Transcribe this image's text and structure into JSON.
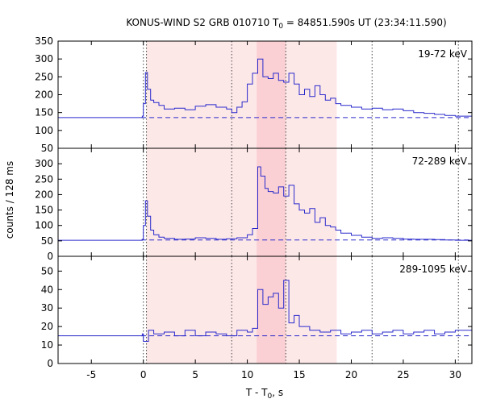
{
  "chart_data": {
    "type": "line",
    "title_main": "KONUS-WIND S2 GRB 010710 T",
    "title_sub": "0",
    "title_tail": " = 84851.590s UT (23:34:11.590)",
    "xlabel_main": "T - T",
    "xlabel_sub": "0",
    "xlabel_tail": ", s",
    "ylabel": "counts / 128 ms",
    "xlim": [
      -8.2,
      31.6
    ],
    "x_ticks": [
      -5,
      0,
      5,
      10,
      15,
      20,
      25,
      30
    ],
    "x_tick_labels": [
      "-5",
      "0",
      "5",
      "10",
      "15",
      "20",
      "25",
      "30"
    ],
    "grid": false,
    "colors": {
      "curve": "#2a2acc",
      "background_line": "#2a2acc",
      "shade_light": "#fde8e8",
      "shade_dark": "#fad0d4",
      "marker_line": "#444444"
    },
    "shaded_intervals": [
      {
        "start": 0.3,
        "end": 18.6,
        "tone": "light"
      },
      {
        "start": 10.9,
        "end": 13.7,
        "tone": "dark"
      }
    ],
    "vertical_markers": [
      {
        "x": 0.0,
        "style": "dotted"
      },
      {
        "x": 0.3,
        "style": "dotted"
      },
      {
        "x": 8.5,
        "style": "dotted"
      },
      {
        "x": 13.7,
        "style": "dotted"
      },
      {
        "x": 22.0,
        "style": "dotted"
      },
      {
        "x": 30.3,
        "style": "dotted"
      }
    ],
    "panels": [
      {
        "label": "19-72 keV",
        "ylim": [
          50,
          350
        ],
        "y_ticks": [
          50,
          100,
          150,
          200,
          250,
          300,
          350
        ],
        "y_tick_labels": [
          "50",
          "100",
          "150",
          "200",
          "250",
          "300",
          "350"
        ],
        "background_level": 136,
        "series": {
          "x": [
            -8.2,
            -0.4,
            -0.1,
            0.0,
            0.2,
            0.4,
            0.7,
            1.0,
            1.5,
            2.0,
            3.0,
            4.0,
            5.0,
            6.0,
            7.0,
            8.0,
            8.5,
            9.0,
            9.5,
            10.0,
            10.5,
            11.0,
            11.5,
            12.0,
            12.5,
            13.0,
            13.5,
            14.0,
            14.5,
            15.0,
            15.5,
            16.0,
            16.5,
            17.0,
            17.5,
            18.0,
            18.5,
            19.0,
            20.0,
            21.0,
            22.0,
            23.0,
            24.0,
            25.0,
            26.0,
            27.0,
            28.0,
            29.0,
            30.0,
            31.6
          ],
          "y": [
            136,
            136,
            140,
            175,
            262,
            215,
            185,
            178,
            170,
            160,
            162,
            158,
            168,
            172,
            165,
            160,
            150,
            165,
            180,
            230,
            260,
            300,
            250,
            245,
            260,
            240,
            235,
            260,
            230,
            200,
            215,
            195,
            225,
            200,
            185,
            190,
            175,
            170,
            165,
            160,
            162,
            158,
            160,
            155,
            150,
            148,
            145,
            142,
            140,
            140
          ]
        }
      },
      {
        "label": "72-289 keV",
        "ylim": [
          0,
          350
        ],
        "y_ticks": [
          0,
          50,
          100,
          150,
          200,
          250,
          300
        ],
        "y_tick_labels": [
          "0",
          "50",
          "100",
          "150",
          "200",
          "250",
          "300"
        ],
        "background_level": 53,
        "series": {
          "x": [
            -8.2,
            -0.5,
            -0.1,
            0.0,
            0.2,
            0.4,
            0.7,
            1.0,
            1.5,
            2.0,
            3.0,
            4.0,
            5.0,
            6.0,
            7.0,
            8.0,
            9.0,
            10.0,
            10.5,
            11.0,
            11.3,
            11.7,
            12.0,
            12.5,
            13.0,
            13.5,
            14.0,
            14.5,
            15.0,
            15.5,
            16.0,
            16.5,
            17.0,
            17.5,
            18.0,
            18.5,
            19.0,
            20.0,
            21.0,
            22.0,
            23.0,
            24.0,
            25.0,
            26.0,
            27.0,
            28.0,
            29.0,
            30.0,
            31.6
          ],
          "y": [
            52,
            52,
            55,
            100,
            180,
            130,
            85,
            70,
            62,
            58,
            55,
            56,
            60,
            58,
            55,
            57,
            60,
            70,
            90,
            290,
            260,
            220,
            210,
            205,
            225,
            195,
            230,
            170,
            150,
            140,
            155,
            110,
            125,
            100,
            95,
            85,
            75,
            68,
            62,
            58,
            60,
            58,
            56,
            55,
            55,
            54,
            53,
            52,
            52
          ]
        }
      },
      {
        "label": "289-1095 keV",
        "ylim": [
          0,
          58
        ],
        "y_ticks": [
          0,
          10,
          20,
          30,
          40,
          50
        ],
        "y_tick_labels": [
          "0",
          "10",
          "20",
          "30",
          "40",
          "50"
        ],
        "background_level": 15,
        "series": {
          "x": [
            -8.2,
            -0.5,
            -0.1,
            0.0,
            0.5,
            1.0,
            2.0,
            3.0,
            4.0,
            5.0,
            6.0,
            7.0,
            8.0,
            9.0,
            10.0,
            10.5,
            11.0,
            11.5,
            12.0,
            12.5,
            13.0,
            13.5,
            14.0,
            14.5,
            15.0,
            16.0,
            17.0,
            18.0,
            19.0,
            20.0,
            21.0,
            22.0,
            23.0,
            24.0,
            25.0,
            26.0,
            27.0,
            28.0,
            29.0,
            30.0,
            31.6
          ],
          "y": [
            15,
            15,
            16,
            12,
            18,
            16,
            17,
            15,
            18,
            15,
            17,
            16,
            15,
            18,
            17,
            19,
            40,
            32,
            36,
            38,
            30,
            45,
            22,
            26,
            20,
            18,
            17,
            18,
            16,
            17,
            18,
            16,
            17,
            18,
            16,
            17,
            18,
            16,
            17,
            18,
            17
          ]
        }
      }
    ]
  }
}
